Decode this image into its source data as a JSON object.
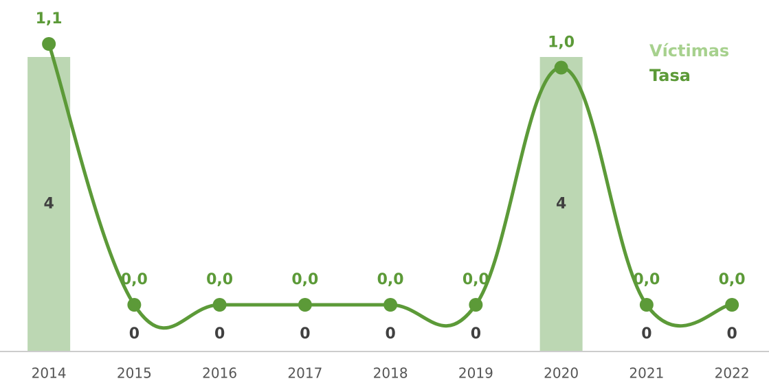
{
  "chart_data": {
    "type": "bar-line",
    "categories": [
      "2014",
      "2015",
      "2016",
      "2017",
      "2018",
      "2019",
      "2020",
      "2021",
      "2022"
    ],
    "series": [
      {
        "name": "Víctimas",
        "color": "#bcd7b3",
        "values": [
          4,
          0,
          0,
          0,
          0,
          0,
          4,
          0,
          0
        ]
      },
      {
        "name": "Tasa",
        "color": "#5c9a38",
        "axis": "y2",
        "values": [
          1.1,
          0,
          0,
          0,
          0,
          0,
          1.0,
          0,
          0
        ],
        "value_labels": [
          "1,1",
          "0,0",
          "0,0",
          "0,0",
          "0,0",
          "0,0",
          "1,0",
          "0,0",
          "0,0"
        ]
      }
    ],
    "ylim": [
      0,
      4
    ],
    "y2lim": [
      0,
      1.1
    ]
  }
}
